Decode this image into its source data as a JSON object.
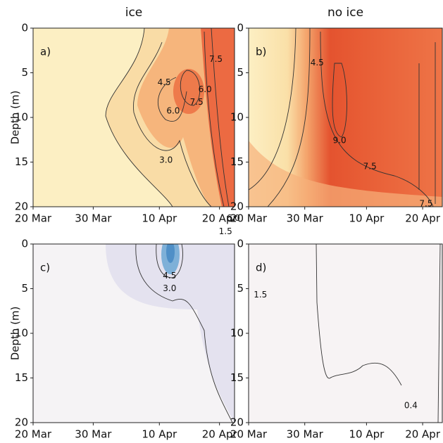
{
  "chart_data": [
    {
      "type": "contour",
      "title": "ice",
      "panel_label": "a)",
      "ylabel": "Depth (m)",
      "xlim": [
        0,
        33.5
      ],
      "ylim": [
        20,
        0
      ],
      "xticks": [
        {
          "value": 0,
          "label": "20 Mar"
        },
        {
          "value": 10,
          "label": "30 Mar"
        },
        {
          "value": 21,
          "label": "10 Apr"
        },
        {
          "value": 31,
          "label": "20 Apr"
        }
      ],
      "yticks": [
        0,
        5,
        10,
        15,
        20
      ],
      "contour_labels": [
        {
          "level": 4.5,
          "x": 21.8,
          "y": 6.1
        },
        {
          "level": {
            "value": 6,
            "label": "6.0"
          },
          "x": 23.3,
          "y": 9.3
        },
        {
          "level": 7.5,
          "x": 27.2,
          "y": 8.3
        },
        {
          "level": {
            "value": 6,
            "label": "6.0"
          },
          "x": 28.6,
          "y": 6.9
        },
        {
          "level": 7.5,
          "x": 30.4,
          "y": 3.5
        },
        {
          "level": {
            "value": 3,
            "label": "3.0"
          },
          "x": 22.1,
          "y": 14.8
        },
        {
          "level": {
            "value": 6,
            "label": "6.0"
          },
          "x": 33.3,
          "y": 21.3
        },
        {
          "level": 1.5,
          "x": 32.0,
          "y": 22.8
        }
      ]
    },
    {
      "type": "contour",
      "title": "no ice",
      "panel_label": "b)",
      "xlim": [
        0,
        34.5
      ],
      "ylim": [
        20,
        0
      ],
      "xticks": [
        {
          "value": 0,
          "label": "20 Mar"
        },
        {
          "value": 10,
          "label": "30 Mar"
        },
        {
          "value": 21,
          "label": "10 Apr"
        },
        {
          "value": 31,
          "label": "20 Apr"
        }
      ],
      "yticks": [
        0,
        5,
        10,
        15,
        20
      ],
      "contour_labels": [
        {
          "level": 4.5,
          "x": 12.2,
          "y": 3.9
        },
        {
          "level": {
            "value": 9,
            "label": "9.0"
          },
          "x": 16.2,
          "y": 12.6
        },
        {
          "level": 7.5,
          "x": 21.6,
          "y": 15.5
        },
        {
          "level": 7.5,
          "x": 31.6,
          "y": 19.7
        }
      ]
    },
    {
      "type": "contour",
      "panel_label": "c)",
      "ylabel": "Depth (m)",
      "xlim": [
        0,
        33.5
      ],
      "ylim": [
        20,
        0
      ],
      "xticks": [
        {
          "value": 0,
          "label": "20 Mar"
        },
        {
          "value": 10,
          "label": "30 Mar"
        },
        {
          "value": 21,
          "label": "10 Apr"
        },
        {
          "value": 31,
          "label": "20 Apr"
        }
      ],
      "yticks": [
        0,
        5,
        10,
        15,
        20
      ],
      "contour_labels": [
        {
          "level": 4.5,
          "x": 22.7,
          "y": 3.6
        },
        {
          "level": {
            "value": 3,
            "label": "3.0"
          },
          "x": 22.7,
          "y": 5.0
        }
      ]
    },
    {
      "type": "contour",
      "panel_label": "d)",
      "xlim": [
        0,
        34.5
      ],
      "ylim": [
        20,
        0
      ],
      "xticks": [
        {
          "value": 0,
          "label": "20 Mar"
        },
        {
          "value": 10,
          "label": "30 Mar"
        },
        {
          "value": 21,
          "label": "10 Apr"
        },
        {
          "value": 31,
          "label": "20 Apr"
        }
      ],
      "yticks": [
        0,
        5,
        10,
        15,
        20
      ],
      "contour_labels": [
        {
          "level": 1.5,
          "x": 2.1,
          "y": 5.7
        },
        {
          "level": 0.4,
          "x": 28.9,
          "y": 18.1
        }
      ]
    }
  ]
}
